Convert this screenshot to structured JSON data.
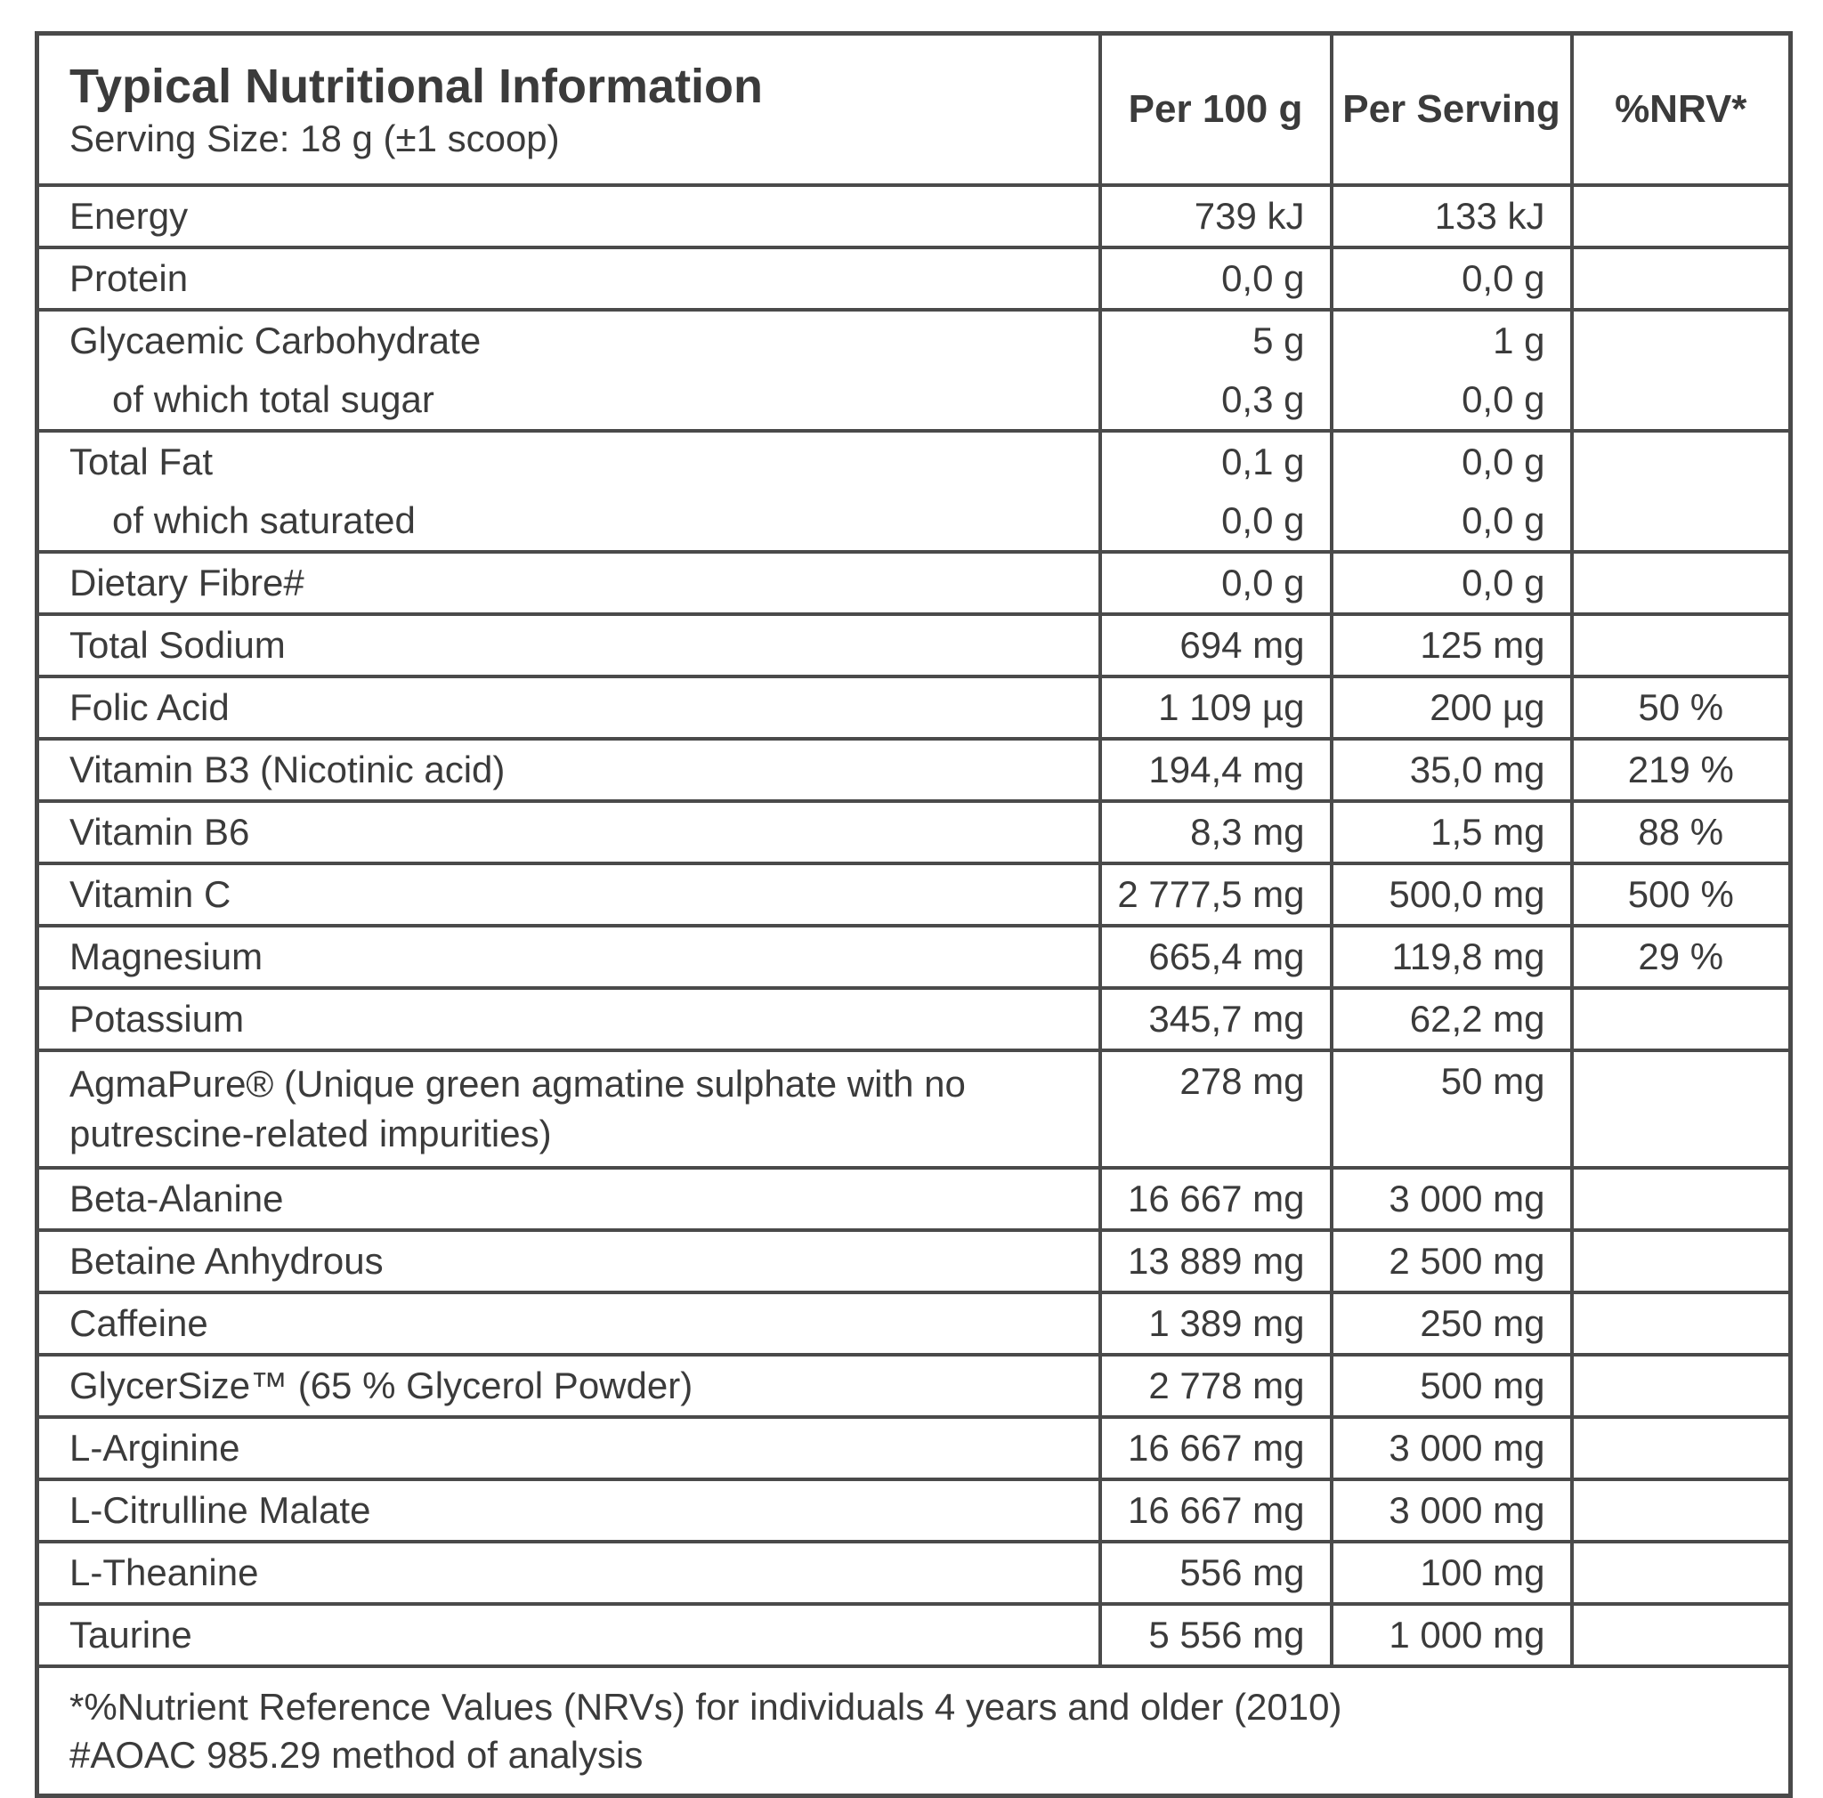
{
  "header": {
    "title": "Typical Nutritional Information",
    "subtitle": "Serving Size: 18 g (±1 scoop)",
    "columns": [
      "Per 100 g",
      "Per Serving",
      "%NRV*"
    ]
  },
  "rows": [
    [
      [
        "Energy",
        "739 kJ",
        "133 kJ"
      ]
    ],
    [
      [
        "Protein",
        "0,0 g",
        "0,0 g"
      ]
    ],
    [
      [
        "Glycaemic Carbohydrate",
        "5 g",
        "1 g"
      ],
      [
        "of which total sugar",
        "0,3 g",
        "0,0 g"
      ]
    ],
    [
      [
        "Total Fat",
        "0,1 g",
        "0,0 g"
      ],
      [
        "of which saturated",
        "0,0 g",
        "0,0 g"
      ]
    ],
    [
      [
        "Dietary Fibre#",
        "0,0 g",
        "0,0 g"
      ]
    ],
    [
      [
        "Total Sodium",
        "694 mg",
        "125 mg"
      ]
    ],
    [
      [
        "Folic Acid",
        "1 109 µg",
        "200 µg",
        "50 %"
      ]
    ],
    [
      [
        "Vitamin B3 (Nicotinic acid)",
        "194,4 mg",
        "35,0 mg",
        "219 %"
      ]
    ],
    [
      [
        "Vitamin B6",
        "8,3 mg",
        "1,5 mg",
        "88 %"
      ]
    ],
    [
      [
        "Vitamin C",
        "2 777,5 mg",
        "500,0 mg",
        "500 %"
      ]
    ],
    [
      [
        "Magnesium",
        "665,4 mg",
        "119,8 mg",
        "29 %"
      ]
    ],
    [
      [
        "Potassium",
        "345,7 mg",
        "62,2 mg"
      ]
    ],
    [
      [
        "AgmaPure® (Unique green agmatine sulphate with no putrescine-related impurities)",
        "278 mg",
        "50 mg"
      ]
    ],
    [
      [
        "Beta-Alanine",
        "16 667 mg",
        "3 000 mg"
      ]
    ],
    [
      [
        "Betaine Anhydrous",
        "13 889 mg",
        "2 500 mg"
      ]
    ],
    [
      [
        "Caffeine",
        "1 389 mg",
        "250 mg"
      ]
    ],
    [
      [
        "GlycerSize™ (65 % Glycerol Powder)",
        "2 778 mg",
        "500 mg"
      ]
    ],
    [
      [
        "L-Arginine",
        "16 667 mg",
        "3 000 mg"
      ]
    ],
    [
      [
        "L-Citrulline Malate",
        "16 667 mg",
        "3 000 mg"
      ]
    ],
    [
      [
        "L-Theanine",
        "556 mg",
        "100 mg"
      ]
    ],
    [
      [
        "Taurine",
        "5 556 mg",
        "1 000 mg"
      ]
    ]
  ],
  "footnotes": [
    "*%Nutrient Reference Values (NRVs) for individuals 4 years and older (2010)",
    "#AOAC 985.29 method of analysis"
  ]
}
